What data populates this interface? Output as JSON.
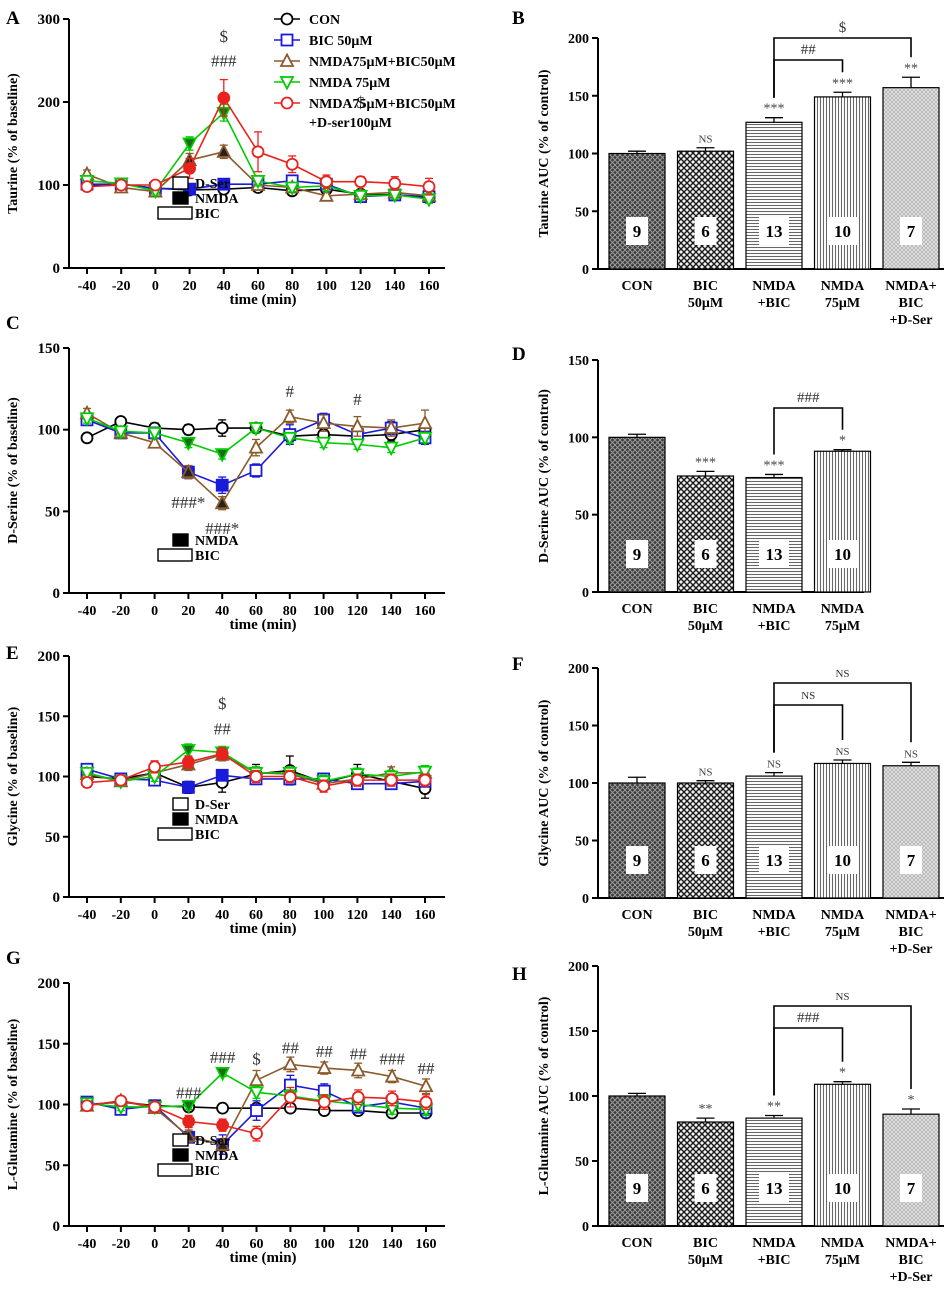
{
  "chart_data": [
    {
      "type": "line",
      "panel": "A",
      "ylabel": "Taurine (% of baseline)",
      "xlabel": "time (min)",
      "x": [
        -40,
        -20,
        0,
        20,
        40,
        60,
        80,
        100,
        120,
        140,
        160
      ],
      "xticks": [
        "-40",
        "-20",
        "0",
        "20",
        "40",
        "60",
        "80",
        "100",
        "120",
        "140",
        "160"
      ],
      "ylim": [
        0,
        300
      ],
      "yticks": [
        0,
        100,
        200,
        300
      ],
      "series": [
        {
          "name": "CON",
          "color": "#000000",
          "marker": "circle",
          "values": [
            100,
            101,
            96,
            94,
            95,
            97,
            93,
            95,
            89,
            88,
            85
          ],
          "err": [
            4,
            4,
            4,
            4,
            4,
            4,
            4,
            4,
            4,
            4,
            4
          ]
        },
        {
          "name": "BIC 50μM",
          "color": "#1a1adb",
          "marker": "square",
          "values": [
            101,
            101,
            96,
            95,
            101,
            101,
            105,
            101,
            86,
            88,
            86
          ],
          "err": [
            4,
            4,
            4,
            4,
            5,
            5,
            5,
            5,
            4,
            4,
            4
          ]
        },
        {
          "name": "NMDA75μM+BIC50μM",
          "color": "#8b5a2b",
          "marker": "tri-up",
          "values": [
            113,
            97,
            92,
            130,
            140,
            100,
            97,
            87,
            89,
            91,
            87
          ],
          "err": [
            5,
            5,
            5,
            8,
            8,
            6,
            5,
            5,
            5,
            5,
            5
          ]
        },
        {
          "name": "NMDA 75μM",
          "color": "#00cc00",
          "marker": "tri-down",
          "values": [
            105,
            102,
            93,
            150,
            187,
            105,
            97,
            99,
            87,
            88,
            83
          ],
          "err": [
            5,
            5,
            5,
            8,
            10,
            6,
            5,
            5,
            5,
            5,
            5
          ]
        },
        {
          "name": "NMDA75μM+BIC50μM +D-ser100μM",
          "color": "#e8231e",
          "marker": "circle",
          "values": [
            98,
            100,
            100,
            120,
            205,
            140,
            125,
            104,
            104,
            102,
            98
          ],
          "err": [
            5,
            5,
            5,
            12,
            22,
            24,
            10,
            8,
            6,
            8,
            10
          ]
        }
      ],
      "annotations": [
        {
          "text": "$",
          "x": 40,
          "y": 272
        },
        {
          "text": "###",
          "x": 40,
          "y": 243
        },
        {
          "text": "$",
          "x": 120,
          "y": 193
        }
      ],
      "bars_legend": [
        "D-Ser",
        "NMDA",
        "BIC"
      ]
    },
    {
      "type": "bar",
      "panel": "B",
      "ylabel": "Taurine AUC (% of control)",
      "categories": [
        "CON",
        "BIC 50μM",
        "NMDA +BIC",
        "NMDA 75μM",
        "NMDA+ BIC +D-Ser"
      ],
      "values": [
        100,
        102,
        127,
        149,
        157
      ],
      "err": [
        2,
        3,
        4,
        4,
        9
      ],
      "n": [
        "9",
        "6",
        "13",
        "10",
        "7"
      ],
      "sig": [
        "",
        "NS",
        "***",
        "***",
        "**"
      ],
      "ylim": [
        0,
        200
      ],
      "yticks": [
        0,
        50,
        100,
        150,
        200
      ],
      "brackets": [
        {
          "from": 2,
          "to": 3,
          "label": "##"
        },
        {
          "from": 2,
          "to": 4,
          "label": "$"
        }
      ]
    },
    {
      "type": "line",
      "panel": "C",
      "ylabel": "D-Serine (% of baseline)",
      "xlabel": "time (min)",
      "x": [
        -40,
        -20,
        0,
        20,
        40,
        60,
        80,
        100,
        120,
        140,
        160
      ],
      "xticks": [
        "-40",
        "-20",
        "0",
        "20",
        "40",
        "60",
        "80",
        "100",
        "120",
        "140",
        "160"
      ],
      "ylim": [
        0,
        150
      ],
      "yticks": [
        0,
        50,
        100,
        150
      ],
      "series": [
        {
          "name": "CON",
          "color": "#000000",
          "marker": "circle",
          "values": [
            95,
            105,
            101,
            100,
            101,
            101,
            96,
            97,
            96,
            97,
            100
          ],
          "err": [
            2,
            2,
            3,
            3,
            5,
            3,
            3,
            3,
            5,
            4,
            4
          ]
        },
        {
          "name": "BIC 50μM",
          "color": "#1a1adb",
          "marker": "square",
          "values": [
            106,
            98,
            98,
            74,
            66,
            75,
            97,
            106,
            97,
            101,
            95
          ],
          "err": [
            3,
            3,
            3,
            4,
            5,
            4,
            6,
            4,
            5,
            4,
            4
          ]
        },
        {
          "name": "NMDA75μM+BIC50μM",
          "color": "#8b5a2b",
          "marker": "tri-up",
          "values": [
            110,
            98,
            92,
            74,
            55,
            89,
            108,
            104,
            102,
            101,
            104
          ],
          "err": [
            3,
            3,
            3,
            4,
            4,
            5,
            4,
            5,
            6,
            5,
            8
          ]
        },
        {
          "name": "NMDA 75μM",
          "color": "#00cc00",
          "marker": "tri-down",
          "values": [
            107,
            99,
            98,
            92,
            85,
            101,
            95,
            92,
            91,
            89,
            95
          ],
          "err": [
            3,
            3,
            3,
            3,
            3,
            3,
            3,
            3,
            3,
            3,
            3
          ]
        }
      ],
      "annotations": [
        {
          "text": "###*",
          "x": 20,
          "y": 52
        },
        {
          "text": "###*",
          "x": 40,
          "y": 36
        },
        {
          "text": "#",
          "x": 80,
          "y": 120
        },
        {
          "text": "#",
          "x": 120,
          "y": 115
        }
      ],
      "bars_legend": [
        "NMDA",
        "BIC"
      ]
    },
    {
      "type": "bar",
      "panel": "D",
      "ylabel": "D-Serine AUC (% of control)",
      "categories": [
        "CON",
        "BIC 50μM",
        "NMDA +BIC",
        "NMDA 75μM"
      ],
      "values": [
        100,
        75,
        74,
        91
      ],
      "err": [
        2,
        3,
        2,
        1
      ],
      "n": [
        "9",
        "6",
        "13",
        "10"
      ],
      "sig": [
        "",
        "***",
        "***",
        "*"
      ],
      "ylim": [
        0,
        150
      ],
      "yticks": [
        0,
        50,
        100,
        150
      ],
      "brackets": [
        {
          "from": 2,
          "to": 3,
          "label": "###"
        }
      ]
    },
    {
      "type": "line",
      "panel": "E",
      "ylabel": "Glycine (% of baseline)",
      "xlabel": "time (min)",
      "x": [
        -40,
        -20,
        0,
        20,
        40,
        60,
        80,
        100,
        120,
        140,
        160
      ],
      "xticks": [
        "-40",
        "-20",
        "0",
        "20",
        "40",
        "60",
        "80",
        "100",
        "120",
        "140",
        "160"
      ],
      "ylim": [
        0,
        200
      ],
      "yticks": [
        0,
        50,
        100,
        150,
        200
      ],
      "series": [
        {
          "name": "CON",
          "color": "#000000",
          "marker": "circle",
          "values": [
            100,
            98,
            103,
            91,
            95,
            102,
            105,
            95,
            102,
            96,
            90
          ],
          "err": [
            4,
            4,
            5,
            5,
            8,
            8,
            12,
            5,
            8,
            6,
            8
          ]
        },
        {
          "name": "BIC 50μM",
          "color": "#1a1adb",
          "marker": "square",
          "values": [
            106,
            98,
            97,
            91,
            101,
            98,
            98,
            98,
            94,
            94,
            96
          ],
          "err": [
            4,
            4,
            4,
            4,
            4,
            4,
            4,
            4,
            4,
            4,
            4
          ]
        },
        {
          "name": "NMDA75μM+BIC50μM",
          "color": "#8b5a2b",
          "marker": "tri-up",
          "values": [
            102,
            96,
            103,
            110,
            118,
            103,
            102,
            94,
            98,
            103,
            103
          ],
          "err": [
            4,
            4,
            4,
            5,
            5,
            5,
            5,
            5,
            5,
            5,
            5
          ]
        },
        {
          "name": "NMDA 75μM",
          "color": "#00cc00",
          "marker": "tri-down",
          "values": [
            103,
            96,
            100,
            122,
            120,
            103,
            103,
            96,
            102,
            100,
            104
          ],
          "err": [
            4,
            4,
            4,
            5,
            5,
            5,
            5,
            5,
            5,
            5,
            5
          ]
        },
        {
          "name": "NMDA75μM+BIC50μM +D-ser100μM",
          "color": "#e8231e",
          "marker": "circle",
          "values": [
            95,
            97,
            108,
            112,
            119,
            100,
            100,
            92,
            97,
            97,
            97
          ],
          "err": [
            4,
            4,
            5,
            5,
            5,
            5,
            5,
            5,
            5,
            5,
            5
          ]
        }
      ],
      "annotations": [
        {
          "text": "$",
          "x": 40,
          "y": 156
        },
        {
          "text": "##",
          "x": 40,
          "y": 135
        }
      ],
      "bars_legend": [
        "D-Ser",
        "NMDA",
        "BIC"
      ]
    },
    {
      "type": "bar",
      "panel": "F",
      "ylabel": "Glycine AUC (% of control)",
      "categories": [
        "CON",
        "BIC 50μM",
        "NMDA +BIC",
        "NMDA 75μM",
        "NMDA+ BIC +D-Ser"
      ],
      "values": [
        100,
        100,
        106,
        117,
        115
      ],
      "err": [
        5,
        2,
        3,
        3,
        3
      ],
      "n": [
        "9",
        "6",
        "13",
        "10",
        "7"
      ],
      "sig": [
        "",
        "NS",
        "NS",
        "NS",
        "NS"
      ],
      "ylim": [
        0,
        200
      ],
      "yticks": [
        0,
        50,
        100,
        150,
        200
      ],
      "brackets": [
        {
          "from": 2,
          "to": 3,
          "label": "NS"
        },
        {
          "from": 2,
          "to": 4,
          "label": "NS"
        }
      ]
    },
    {
      "type": "line",
      "panel": "G",
      "ylabel": "L-Glutamine (% of baseline)",
      "xlabel": "time (min)",
      "x": [
        -40,
        -20,
        0,
        20,
        40,
        60,
        80,
        100,
        120,
        140,
        160
      ],
      "xticks": [
        "-40",
        "-20",
        "0",
        "20",
        "40",
        "60",
        "80",
        "100",
        "120",
        "140",
        "160"
      ],
      "ylim": [
        0,
        200
      ],
      "yticks": [
        0,
        50,
        100,
        150,
        200
      ],
      "series": [
        {
          "name": "CON",
          "color": "#000000",
          "marker": "circle",
          "values": [
            100,
            102,
            99,
            98,
            97,
            97,
            97,
            95,
            95,
            93,
            93
          ],
          "err": [
            3,
            3,
            3,
            3,
            3,
            3,
            3,
            3,
            3,
            3,
            3
          ]
        },
        {
          "name": "BIC 50μM",
          "color": "#1a1adb",
          "marker": "square",
          "values": [
            102,
            96,
            99,
            73,
            67,
            95,
            116,
            111,
            98,
            102,
            97
          ],
          "err": [
            3,
            3,
            3,
            4,
            8,
            8,
            8,
            6,
            5,
            5,
            8
          ]
        },
        {
          "name": "NMDA75μM+BIC50μM",
          "color": "#8b5a2b",
          "marker": "tri-up",
          "values": [
            99,
            103,
            97,
            74,
            67,
            120,
            133,
            130,
            128,
            123,
            115
          ],
          "err": [
            3,
            3,
            3,
            5,
            5,
            8,
            6,
            5,
            6,
            5,
            6
          ]
        },
        {
          "name": "NMDA 75μM",
          "color": "#00cc00",
          "marker": "tri-down",
          "values": [
            101,
            98,
            98,
            99,
            126,
            110,
            107,
            103,
            100,
            97,
            96
          ],
          "err": [
            3,
            3,
            3,
            3,
            3,
            5,
            5,
            5,
            5,
            5,
            5
          ]
        },
        {
          "name": "NMDA75μM+BIC50μM +D-ser100μM",
          "color": "#e8231e",
          "marker": "circle",
          "values": [
            99,
            103,
            98,
            86,
            83,
            76,
            106,
            102,
            106,
            105,
            102
          ],
          "err": [
            3,
            3,
            3,
            5,
            5,
            6,
            8,
            6,
            6,
            6,
            6
          ]
        }
      ],
      "annotations": [
        {
          "text": "###",
          "x": 20,
          "y": 105
        },
        {
          "text": "###",
          "x": 40,
          "y": 134
        },
        {
          "text": "$",
          "x": 60,
          "y": 133
        },
        {
          "text": "##",
          "x": 80,
          "y": 142
        },
        {
          "text": "##",
          "x": 100,
          "y": 139
        },
        {
          "text": "##",
          "x": 120,
          "y": 137
        },
        {
          "text": "###",
          "x": 140,
          "y": 133
        },
        {
          "text": "##",
          "x": 160,
          "y": 125
        }
      ],
      "bars_legend": [
        "D-Ser",
        "NMDA",
        "BIC"
      ]
    },
    {
      "type": "bar",
      "panel": "H",
      "ylabel": "L-Glutamine AUC (% of control)",
      "categories": [
        "CON",
        "BIC 50μM",
        "NMDA +BIC",
        "NMDA 75μM",
        "NMDA+ BIC +D-Ser"
      ],
      "values": [
        100,
        80,
        83,
        109,
        86
      ],
      "err": [
        2,
        3,
        2,
        2,
        4
      ],
      "n": [
        "9",
        "6",
        "13",
        "10",
        "7"
      ],
      "sig": [
        "",
        "**",
        "**",
        "*",
        "*"
      ],
      "ylim": [
        0,
        200
      ],
      "yticks": [
        0,
        50,
        100,
        150,
        200
      ],
      "brackets": [
        {
          "from": 2,
          "to": 3,
          "label": "###"
        },
        {
          "from": 2,
          "to": 4,
          "label": "NS"
        }
      ]
    }
  ]
}
